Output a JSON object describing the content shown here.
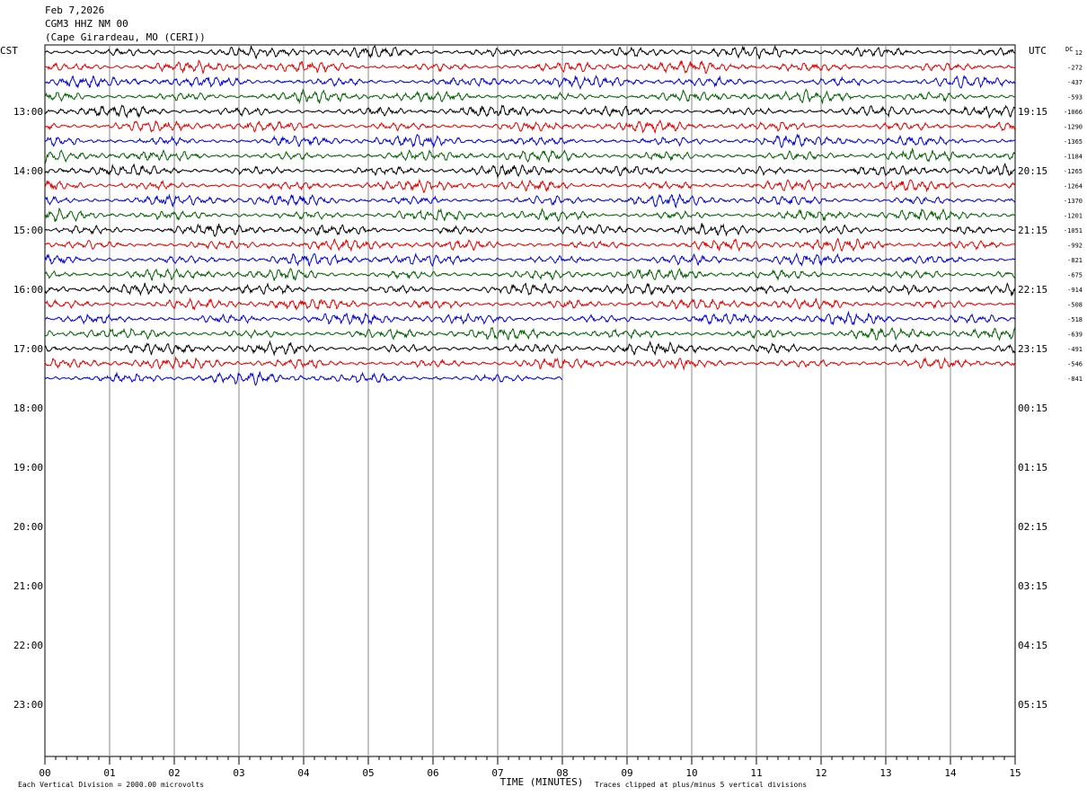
{
  "header": {
    "date": "Feb 7,2026",
    "station": "CGM3 HHZ NM 00",
    "location": "(Cape Girardeau, MO (CERI))"
  },
  "chart_data": {
    "type": "line",
    "title": "",
    "xlabel": "TIME (MINUTES)",
    "left_axis_label": "CST",
    "right_axis_label": "UTC",
    "dc_label": "DC",
    "x_ticks": [
      "00",
      "01",
      "02",
      "03",
      "04",
      "05",
      "06",
      "07",
      "08",
      "09",
      "10",
      "11",
      "12",
      "13",
      "14",
      "15"
    ],
    "xlim": [
      0,
      15
    ],
    "left_hour_labels": [
      "13:00",
      "14:00",
      "15:00",
      "16:00",
      "17:00",
      "18:00",
      "19:00",
      "20:00",
      "21:00",
      "22:00",
      "23:00"
    ],
    "right_hour_labels": [
      "19:15",
      "20:15",
      "21:15",
      "22:15",
      "23:15",
      "00:15",
      "01:15",
      "02:15",
      "03:15",
      "04:15",
      "05:15"
    ],
    "dc_offsets": [
      "12",
      "-272",
      "-437",
      "-593",
      "-1066",
      "-1290",
      "-1365",
      "-1184",
      "-1265",
      "-1264",
      "-1370",
      "-1201",
      "-1051",
      "-992",
      "-821",
      "-675",
      "-914",
      "-508",
      "-518",
      "-639",
      "-491",
      "-546",
      "-841"
    ],
    "trace_colors": [
      "#000000",
      "#e00000",
      "#0000d0",
      "#006000"
    ],
    "trace_count": 23,
    "last_trace_end_minute": 8,
    "footer_left": "Each Vertical Division = 2000.00 microvolts",
    "footer_right": "Traces clipped at plus/minus 5 vertical divisions",
    "grid": true
  }
}
